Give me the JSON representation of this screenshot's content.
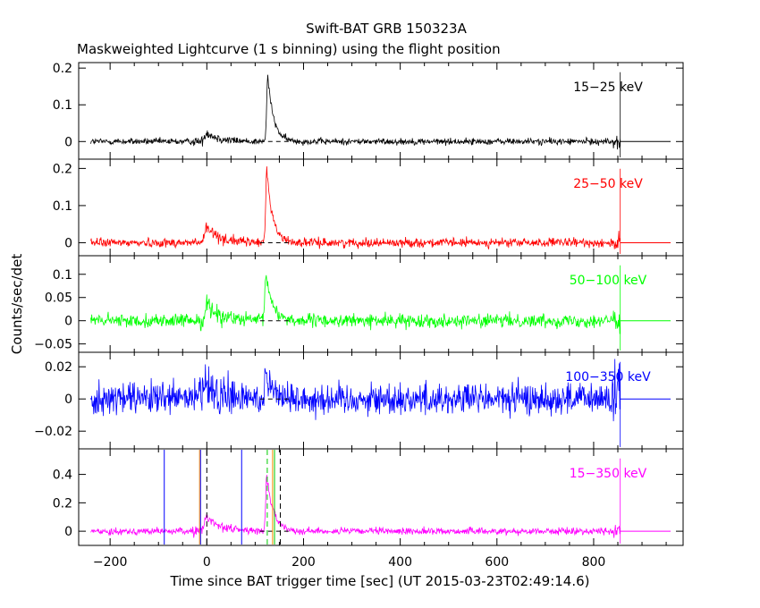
{
  "title": "Swift-BAT GRB 150323A",
  "subtitle": "Maskweighted Lightcurve (1 s binning) using the flight position",
  "chart_data": {
    "type": "line",
    "xlabel": "Time since BAT trigger time [sec] (UT 2015-03-23T02:49:14.6)",
    "ylabel": "Counts/sec/det",
    "xlim": [
      -265,
      985
    ],
    "xticks": [
      -200,
      0,
      200,
      400,
      600,
      800
    ],
    "xtick_labels": [
      "−200",
      "0",
      "200",
      "400",
      "600",
      "800"
    ],
    "data_end": 855,
    "panels": [
      {
        "band": "15−25 keV",
        "color": "#000000",
        "ylim": [
          -0.048,
          0.215
        ],
        "yticks": [
          0,
          0.1,
          0.2
        ],
        "ytick_labels": [
          "0",
          "0.1",
          "0.2"
        ],
        "noise": 0.0045,
        "features": [
          {
            "t": 0,
            "amp": 0.025,
            "rise": 6,
            "decay": 25
          },
          {
            "t": 126,
            "amp": 0.18,
            "rise": 3,
            "decay": 12
          }
        ]
      },
      {
        "band": "25−50 keV",
        "color": "#ff0000",
        "ylim": [
          -0.035,
          0.225
        ],
        "yticks": [
          0,
          0.1,
          0.2
        ],
        "ytick_labels": [
          "0",
          "0.1",
          "0.2"
        ],
        "noise": 0.006,
        "features": [
          {
            "t": 0,
            "amp": 0.04,
            "rise": 6,
            "decay": 28
          },
          {
            "t": 124,
            "amp": 0.2,
            "rise": 3,
            "decay": 12
          }
        ]
      },
      {
        "band": "50−100 keV",
        "color": "#00ff00",
        "ylim": [
          -0.068,
          0.14
        ],
        "yticks": [
          -0.05,
          0,
          0.05,
          0.1
        ],
        "ytick_labels": [
          "−0.05",
          "0",
          "0.05",
          "0.1"
        ],
        "noise": 0.007,
        "features": [
          {
            "t": 0,
            "amp": 0.035,
            "rise": 5,
            "decay": 28
          },
          {
            "t": 122,
            "amp": 0.1,
            "rise": 3,
            "decay": 14
          }
        ]
      },
      {
        "band": "100−350 keV",
        "color": "#0000ff",
        "ylim": [
          -0.031,
          0.029
        ],
        "yticks": [
          -0.02,
          0,
          0.02
        ],
        "ytick_labels": [
          "−0.02",
          "0",
          "0.02"
        ],
        "noise": 0.005,
        "features": [
          {
            "t": 0,
            "amp": 0.006,
            "rise": 20,
            "decay": 30
          },
          {
            "t": 122,
            "amp": 0.018,
            "rise": 3,
            "decay": 15
          }
        ]
      },
      {
        "band": "15−350 keV",
        "color": "#ff00ff",
        "ylim": [
          -0.1,
          0.58
        ],
        "yticks": [
          0,
          0.2,
          0.4
        ],
        "ytick_labels": [
          "0",
          "0.2",
          "0.4"
        ],
        "noise": 0.012,
        "features": [
          {
            "t": 0,
            "amp": 0.1,
            "rise": 6,
            "decay": 30
          },
          {
            "t": 124,
            "amp": 0.38,
            "rise": 3,
            "decay": 14
          }
        ]
      }
    ],
    "markers": [
      {
        "t": -88,
        "color": "#0000ff",
        "style": "solid"
      },
      {
        "t": -15,
        "color": "#ff8c00",
        "style": "solid"
      },
      {
        "t": -13,
        "color": "#0000ff",
        "style": "solid"
      },
      {
        "t": 0,
        "color": "#000000",
        "style": "dashed"
      },
      {
        "t": 72,
        "color": "#0000ff",
        "style": "solid"
      },
      {
        "t": 125,
        "color": "#00cc00",
        "style": "dashed"
      },
      {
        "t": 136,
        "color": "#ff8c00",
        "style": "solid"
      },
      {
        "t": 140,
        "color": "#00cc00",
        "style": "solid"
      },
      {
        "t": 152,
        "color": "#000000",
        "style": "dashed"
      }
    ]
  }
}
